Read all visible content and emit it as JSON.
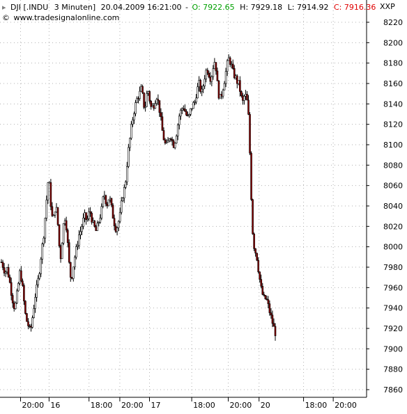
{
  "header": {
    "symbol": "DJI [.INDU",
    "interval": "3 Minuten]",
    "datetime": "20.04.2009 16:21:00",
    "open_label": "O:",
    "open_value": "7922.65",
    "high_label": "H:",
    "high_value": "7929.18",
    "low_label": "L:",
    "low_value": "7914.92",
    "close_label": "C:",
    "close_value": "7916.36",
    "source": "www.tradesignalonline.com",
    "copyright_mark": "©",
    "exchange": "XXP"
  },
  "colors": {
    "open": "#00a000",
    "close": "#e00000",
    "down_candle": "#8b0000",
    "up_candle": "#ffffff",
    "grid": "#b0b0b0"
  },
  "chart_data": {
    "type": "candlestick",
    "ylim": [
      7850,
      8230
    ],
    "y_ticks": [
      7860,
      7880,
      7900,
      7920,
      7940,
      7960,
      7980,
      8000,
      8020,
      8040,
      8060,
      8080,
      8100,
      8120,
      8140,
      8160,
      8180,
      8200,
      8220
    ],
    "x_tick_labels": [
      "20:00",
      "16",
      "18:00",
      "20:00",
      "17",
      "18:00",
      "20:00",
      "20",
      "18:00",
      "20:00"
    ],
    "x_tick_bars": [
      18,
      43,
      78,
      105,
      131,
      168,
      200,
      227,
      266,
      292
    ],
    "total_bars": 320,
    "grid": true,
    "close_series": [
      7985,
      7982,
      7978,
      7975,
      7980,
      7975,
      7968,
      7960,
      7952,
      7945,
      7940,
      7945,
      7955,
      7965,
      7975,
      7970,
      7960,
      7948,
      7935,
      7928,
      7925,
      7920,
      7917,
      7925,
      7935,
      7945,
      7955,
      7960,
      7968,
      7978,
      7990,
      8000,
      8010,
      8025,
      8040,
      8060,
      8068,
      8050,
      8035,
      8025,
      8030,
      8040,
      8035,
      8020,
      8000,
      7990,
      8005,
      8020,
      8030,
      8025,
      8010,
      7990,
      7975,
      7968,
      7975,
      7985,
      7992,
      7998,
      8005,
      8012,
      8015,
      8020,
      8025,
      8030,
      8028,
      8025,
      8030,
      8035,
      8032,
      8025,
      8020,
      8018,
      8015,
      8020,
      8025,
      8030,
      8035,
      8045,
      8052,
      8048,
      8040,
      8045,
      8050,
      8042,
      8035,
      8028,
      8022,
      8018,
      8020,
      8025,
      8030,
      8040,
      8050,
      8055,
      8060,
      8075,
      8090,
      8100,
      8110,
      8120,
      8128,
      8135,
      8140,
      8145,
      8148,
      8150,
      8155,
      8150,
      8140,
      8135,
      8145,
      8155,
      8150,
      8140,
      8135,
      8138,
      8140,
      8145,
      8148,
      8142,
      8135,
      8125,
      8115,
      8108,
      8102,
      8098,
      8100,
      8105,
      8110,
      8108,
      8102,
      8100,
      8105,
      8112,
      8120,
      8128,
      8132,
      8135,
      8138,
      8135,
      8130,
      8128,
      8125,
      8130,
      8135,
      8138,
      8140,
      8142,
      8150,
      8155,
      8160,
      8155,
      8150,
      8155,
      8165,
      8170,
      8175,
      8172,
      8168,
      8165,
      8170,
      8178,
      8182,
      8175,
      8160,
      8150,
      8145,
      8148,
      8155,
      8160,
      8168,
      8175,
      8182,
      8185,
      8180,
      8176,
      8170,
      8168,
      8165,
      8162,
      8160,
      8155,
      8148,
      8140,
      8145,
      8150,
      8145,
      8140,
      8120,
      8080,
      8040,
      8010,
      8000,
      7995,
      7990,
      7980,
      7970,
      7960,
      7955,
      7950,
      7948,
      7950,
      7945,
      7940,
      7935,
      7930,
      7925,
      7920,
      7916
    ]
  }
}
